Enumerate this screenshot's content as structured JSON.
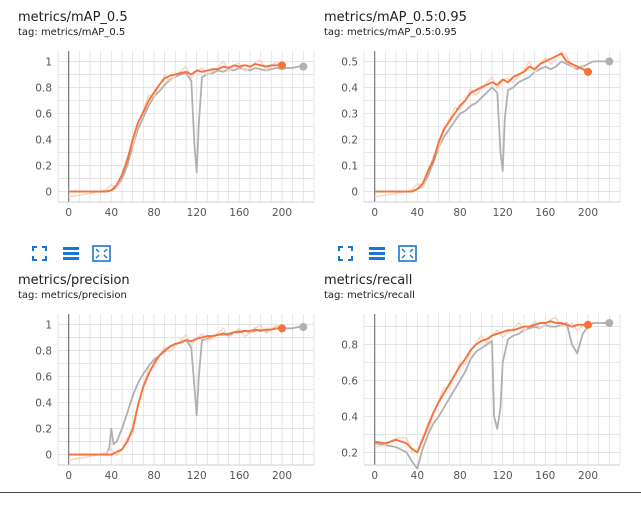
{
  "colors": {
    "smoothed": "#f4733d",
    "comparison": "#b0b0b0",
    "raw": "#fbd3c1",
    "grid": "#e0e0e0",
    "axis": "#777777",
    "accent": "#1976d2"
  },
  "toolbar": {
    "icons": [
      "fullscreen-icon",
      "toggle-lines-icon",
      "fit-domain-icon"
    ]
  },
  "chart_data": [
    {
      "type": "line",
      "title": "metrics/mAP_0.5",
      "tag": "tag: metrics/mAP_0.5",
      "xlim": [
        -10,
        230
      ],
      "ylim": [
        -0.08,
        1.08
      ],
      "xticks": [
        0,
        40,
        80,
        120,
        160,
        200
      ],
      "yticks": [
        0,
        0.2,
        0.4,
        0.6,
        0.8,
        1
      ],
      "ytick_labels": [
        "0",
        "0.2",
        "0.4",
        "0.6",
        "0.8",
        "1"
      ],
      "series": [
        {
          "x": [
            0,
            20,
            35,
            40,
            45,
            50,
            55,
            60,
            65,
            70,
            75,
            80,
            85,
            90,
            95,
            100,
            105,
            110,
            115,
            118,
            120,
            122,
            125,
            130,
            135,
            140,
            145,
            150,
            155,
            160,
            165,
            170,
            175,
            180,
            185,
            190,
            195,
            200,
            205,
            210,
            215,
            220
          ],
          "y": [
            0,
            0,
            0,
            0.01,
            0.03,
            0.1,
            0.2,
            0.35,
            0.48,
            0.57,
            0.66,
            0.73,
            0.77,
            0.82,
            0.86,
            0.88,
            0.9,
            0.91,
            0.85,
            0.35,
            0.15,
            0.52,
            0.88,
            0.9,
            0.91,
            0.93,
            0.92,
            0.94,
            0.93,
            0.95,
            0.94,
            0.93,
            0.95,
            0.94,
            0.93,
            0.94,
            0.95,
            0.94,
            0.95,
            0.95,
            0.96,
            0.96
          ]
        },
        {
          "x": [
            0,
            20,
            35,
            40,
            45,
            50,
            55,
            60,
            65,
            70,
            75,
            80,
            85,
            90,
            95,
            100,
            105,
            110,
            115,
            120,
            125,
            130,
            135,
            140,
            145,
            150,
            155,
            160,
            165,
            170,
            175,
            180,
            185,
            190,
            195,
            200
          ],
          "y": [
            0,
            0,
            0,
            0.01,
            0.05,
            0.13,
            0.24,
            0.4,
            0.53,
            0.61,
            0.7,
            0.76,
            0.82,
            0.87,
            0.89,
            0.9,
            0.91,
            0.92,
            0.9,
            0.93,
            0.92,
            0.93,
            0.94,
            0.94,
            0.96,
            0.95,
            0.97,
            0.96,
            0.97,
            0.96,
            0.98,
            0.97,
            0.96,
            0.97,
            0.97,
            0.97
          ]
        }
      ]
    },
    {
      "type": "line",
      "title": "metrics/mAP_0.5:0.95",
      "tag": "tag: metrics/mAP_0.5:0.95",
      "xlim": [
        -10,
        230
      ],
      "ylim": [
        -0.04,
        0.54
      ],
      "xticks": [
        0,
        40,
        80,
        120,
        160,
        200
      ],
      "yticks": [
        0,
        0.1,
        0.2,
        0.3,
        0.4,
        0.5
      ],
      "ytick_labels": [
        "0",
        "0.1",
        "0.2",
        "0.3",
        "0.4",
        "0.5"
      ],
      "series": [
        {
          "x": [
            0,
            20,
            35,
            40,
            45,
            50,
            55,
            60,
            65,
            70,
            75,
            80,
            85,
            90,
            95,
            100,
            105,
            110,
            115,
            118,
            120,
            122,
            125,
            130,
            135,
            140,
            145,
            150,
            155,
            160,
            165,
            170,
            175,
            180,
            185,
            190,
            195,
            200,
            205,
            210,
            215,
            220
          ],
          "y": [
            0,
            0,
            0,
            0.01,
            0.02,
            0.06,
            0.11,
            0.17,
            0.21,
            0.24,
            0.27,
            0.3,
            0.31,
            0.33,
            0.34,
            0.36,
            0.38,
            0.4,
            0.38,
            0.15,
            0.08,
            0.28,
            0.39,
            0.4,
            0.42,
            0.43,
            0.44,
            0.46,
            0.47,
            0.48,
            0.47,
            0.48,
            0.5,
            0.49,
            0.48,
            0.47,
            0.48,
            0.49,
            0.5,
            0.5,
            0.5,
            0.5
          ]
        },
        {
          "x": [
            0,
            20,
            35,
            40,
            45,
            50,
            55,
            60,
            65,
            70,
            75,
            80,
            85,
            90,
            95,
            100,
            105,
            110,
            115,
            120,
            125,
            130,
            135,
            140,
            145,
            150,
            155,
            160,
            165,
            170,
            175,
            180,
            185,
            190,
            195,
            200
          ],
          "y": [
            0,
            0,
            0,
            0.01,
            0.03,
            0.08,
            0.12,
            0.19,
            0.24,
            0.27,
            0.3,
            0.33,
            0.35,
            0.38,
            0.39,
            0.4,
            0.41,
            0.42,
            0.41,
            0.43,
            0.42,
            0.44,
            0.45,
            0.46,
            0.48,
            0.47,
            0.49,
            0.5,
            0.51,
            0.52,
            0.53,
            0.5,
            0.49,
            0.48,
            0.47,
            0.46
          ]
        }
      ]
    },
    {
      "type": "line",
      "title": "metrics/precision",
      "tag": "tag: metrics/precision",
      "xlim": [
        -10,
        230
      ],
      "ylim": [
        -0.08,
        1.08
      ],
      "xticks": [
        0,
        40,
        80,
        120,
        160,
        200
      ],
      "yticks": [
        0,
        0.2,
        0.4,
        0.6,
        0.8,
        1
      ],
      "ytick_labels": [
        "0",
        "0.2",
        "0.4",
        "0.6",
        "0.8",
        "1"
      ],
      "series": [
        {
          "x": [
            0,
            20,
            35,
            38,
            40,
            42,
            45,
            50,
            55,
            60,
            65,
            70,
            75,
            80,
            85,
            90,
            95,
            100,
            105,
            110,
            115,
            120,
            122,
            125,
            130,
            135,
            140,
            145,
            150,
            155,
            160,
            165,
            170,
            175,
            180,
            185,
            190,
            195,
            200,
            205,
            210,
            215,
            220
          ],
          "y": [
            0,
            0,
            0,
            0.05,
            0.2,
            0.08,
            0.1,
            0.2,
            0.32,
            0.45,
            0.55,
            0.62,
            0.68,
            0.73,
            0.76,
            0.79,
            0.83,
            0.85,
            0.86,
            0.88,
            0.82,
            0.3,
            0.6,
            0.88,
            0.89,
            0.91,
            0.92,
            0.92,
            0.93,
            0.94,
            0.95,
            0.95,
            0.94,
            0.95,
            0.96,
            0.95,
            0.96,
            0.97,
            0.96,
            0.97,
            0.97,
            0.98,
            0.98
          ]
        },
        {
          "x": [
            0,
            20,
            35,
            40,
            45,
            50,
            55,
            60,
            65,
            70,
            75,
            80,
            85,
            90,
            95,
            100,
            105,
            110,
            115,
            120,
            125,
            130,
            135,
            140,
            145,
            150,
            155,
            160,
            165,
            170,
            175,
            180,
            185,
            190,
            195,
            200
          ],
          "y": [
            0,
            0,
            0,
            0,
            0.02,
            0.04,
            0.1,
            0.2,
            0.38,
            0.52,
            0.62,
            0.7,
            0.76,
            0.8,
            0.83,
            0.85,
            0.86,
            0.88,
            0.87,
            0.89,
            0.9,
            0.91,
            0.91,
            0.92,
            0.93,
            0.92,
            0.94,
            0.94,
            0.95,
            0.95,
            0.96,
            0.95,
            0.96,
            0.96,
            0.97,
            0.97
          ]
        }
      ]
    },
    {
      "type": "line",
      "title": "metrics/recall",
      "tag": "tag: metrics/recall",
      "xlim": [
        -10,
        230
      ],
      "ylim": [
        0.13,
        0.97
      ],
      "xticks": [
        0,
        40,
        80,
        120,
        160,
        200
      ],
      "yticks": [
        0.2,
        0.4,
        0.6,
        0.8
      ],
      "ytick_labels": [
        "0.2",
        "0.4",
        "0.6",
        "0.8"
      ],
      "series": [
        {
          "x": [
            0,
            10,
            20,
            30,
            35,
            40,
            45,
            50,
            55,
            60,
            65,
            70,
            75,
            80,
            85,
            90,
            95,
            100,
            105,
            110,
            112,
            115,
            118,
            120,
            125,
            130,
            135,
            140,
            145,
            150,
            155,
            160,
            165,
            170,
            175,
            180,
            185,
            190,
            195,
            200,
            205,
            210,
            215,
            220
          ],
          "y": [
            0.25,
            0.24,
            0.23,
            0.2,
            0.15,
            0.11,
            0.22,
            0.3,
            0.36,
            0.4,
            0.45,
            0.5,
            0.55,
            0.6,
            0.65,
            0.72,
            0.76,
            0.78,
            0.8,
            0.82,
            0.4,
            0.33,
            0.45,
            0.7,
            0.83,
            0.85,
            0.86,
            0.88,
            0.89,
            0.9,
            0.89,
            0.91,
            0.9,
            0.9,
            0.91,
            0.92,
            0.8,
            0.75,
            0.86,
            0.9,
            0.92,
            0.92,
            0.92,
            0.92
          ]
        },
        {
          "x": [
            0,
            10,
            20,
            30,
            35,
            40,
            45,
            50,
            55,
            60,
            65,
            70,
            75,
            80,
            85,
            90,
            95,
            100,
            105,
            110,
            115,
            120,
            125,
            130,
            135,
            140,
            145,
            150,
            155,
            160,
            165,
            170,
            175,
            180,
            185,
            190,
            195,
            200
          ],
          "y": [
            0.26,
            0.25,
            0.27,
            0.25,
            0.22,
            0.2,
            0.27,
            0.35,
            0.42,
            0.48,
            0.53,
            0.58,
            0.63,
            0.68,
            0.72,
            0.77,
            0.8,
            0.82,
            0.83,
            0.85,
            0.86,
            0.87,
            0.88,
            0.88,
            0.89,
            0.9,
            0.9,
            0.91,
            0.92,
            0.92,
            0.93,
            0.92,
            0.92,
            0.91,
            0.9,
            0.91,
            0.91,
            0.91
          ]
        }
      ]
    }
  ]
}
